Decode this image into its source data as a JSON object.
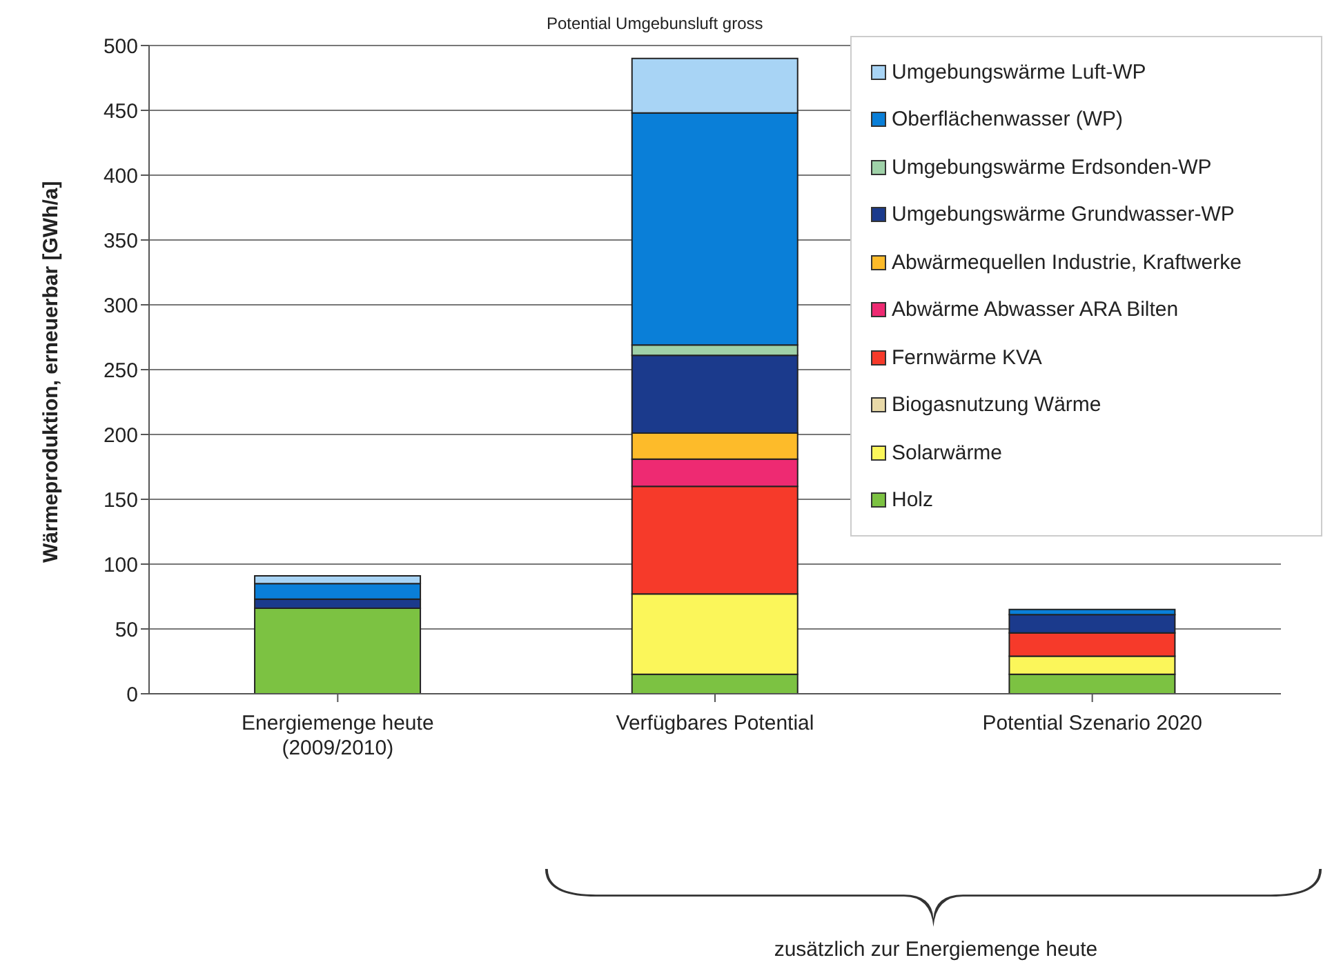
{
  "chart_data": {
    "type": "bar",
    "stacked": true,
    "ylabel": "Wärmeproduktion, erneuerbar [GWh/a]",
    "categories": [
      "Energiemenge heute\n(2009/2010)",
      "Verfügbares Potential",
      "Potential Szenario 2020"
    ],
    "series": [
      {
        "name": "Holz",
        "color": "#7cc242",
        "values": [
          66,
          15,
          15
        ]
      },
      {
        "name": "Solarwärme",
        "color": "#fbf65a",
        "values": [
          0,
          62,
          14
        ]
      },
      {
        "name": "Biogasnutzung Wärme",
        "color": "#e8d9a8",
        "values": [
          0,
          0,
          0
        ]
      },
      {
        "name": "Fernwärme KVA",
        "color": "#f63a2a",
        "values": [
          0,
          83,
          18
        ]
      },
      {
        "name": "Abwärme Abwasser ARA Bilten",
        "color": "#ee2a72",
        "values": [
          0,
          21,
          0
        ]
      },
      {
        "name": "Abwärmequellen Industrie, Kraftwerke",
        "color": "#fdbb2a",
        "values": [
          0,
          20,
          0
        ]
      },
      {
        "name": "Umgebungswärme Grundwasser-WP",
        "color": "#1b3a8c",
        "values": [
          7,
          60,
          14
        ]
      },
      {
        "name": "Umgebungswärme Erdsonden-WP",
        "color": "#9fd1a8",
        "values": [
          0,
          8,
          0
        ]
      },
      {
        "name": "Oberflächenwasser (WP)",
        "color": "#0a7fd8",
        "values": [
          12,
          179,
          4
        ]
      },
      {
        "name": "Umgebungswärme Luft-WP",
        "color": "#a8d4f5",
        "values": [
          6,
          42,
          0
        ]
      }
    ],
    "ylim": [
      0,
      500
    ],
    "yticks": [
      0,
      50,
      100,
      150,
      200,
      250,
      300,
      350,
      400,
      450,
      500
    ],
    "grid": "y",
    "legend": "top right",
    "annotations": [
      "Potential Umgebunsluft gross",
      "zusätzlich zur Energiemenge heute"
    ]
  }
}
